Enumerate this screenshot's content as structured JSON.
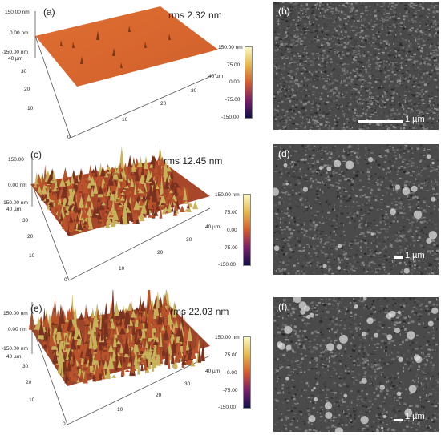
{
  "panels": [
    {
      "label": "(a)",
      "rms": "rms 2.32 nm",
      "z_ticks": [
        "150.00 nm",
        "0.00 nm",
        "-150.00 nm"
      ],
      "y_ticks": [
        "40 µm",
        "30",
        "20",
        "10",
        "0"
      ],
      "x_ticks": [
        "40 µm",
        "30",
        "20",
        "10",
        "0"
      ],
      "colorbar": [
        "150.00 nm",
        "75.00",
        "0.00",
        "-75.00",
        "-150.00"
      ]
    },
    {
      "label": "(c)",
      "rms": "rms 12.45 nm",
      "z_ticks": [
        "150.00",
        "0.00 nm",
        "-150.00 nm"
      ],
      "y_ticks": [
        "40 µm",
        "30",
        "20",
        "10",
        "0"
      ],
      "x_ticks": [
        "40 µm",
        "30",
        "20",
        "10",
        "0"
      ],
      "colorbar": [
        "150.00 nm",
        "75.00",
        "0.00",
        "-75.00",
        "-150.00"
      ]
    },
    {
      "label": "(e)",
      "rms": "rms 22.03 nm",
      "z_ticks": [
        "150.00 nm",
        "0.00 nm",
        "-150.00 nm"
      ],
      "y_ticks": [
        "40 µm",
        "30",
        "20",
        "10",
        "0"
      ],
      "x_ticks": [
        "40 µm",
        "30",
        "20",
        "10",
        "0"
      ],
      "colorbar": [
        "150.00 nm",
        "75.00",
        "0.00",
        "-75.00",
        "-150.00"
      ]
    }
  ],
  "sem": [
    {
      "label": "(b)",
      "scale": "1 µm"
    },
    {
      "label": "(d)",
      "scale": "1 µm"
    },
    {
      "label": "(f)",
      "scale": "1 µm"
    }
  ],
  "colors": {
    "afm_flat": "#d9662e",
    "afm_rough": "#a8462a",
    "afm_peak": "#b5a84a",
    "sem_bg": "#4a4a4a"
  }
}
